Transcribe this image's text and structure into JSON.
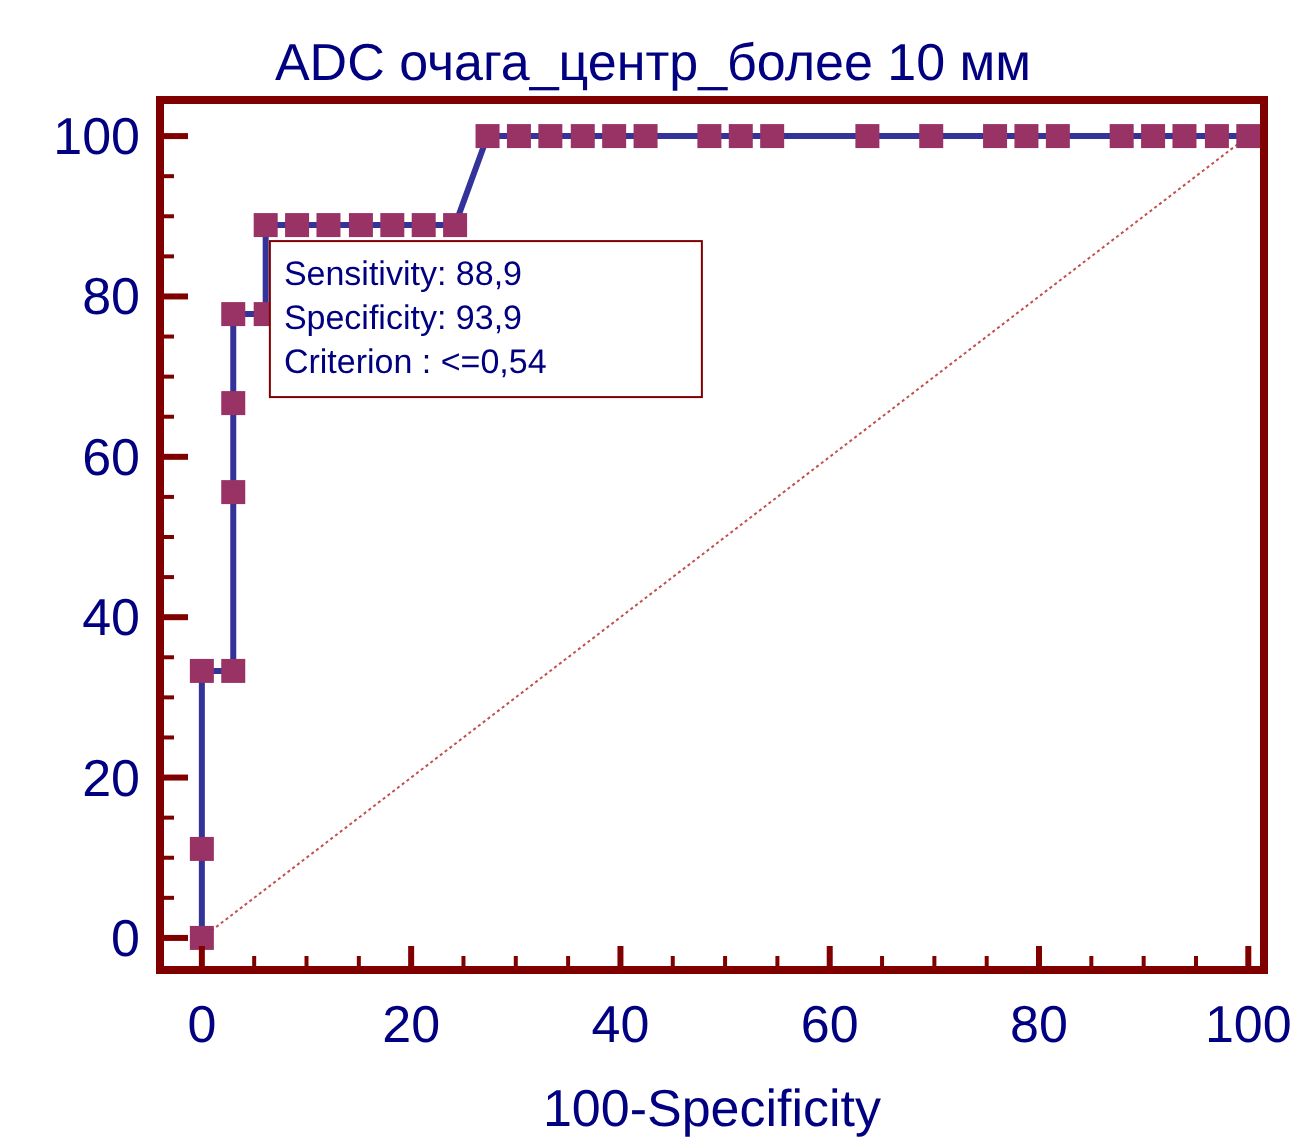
{
  "chart_data": {
    "type": "line",
    "title": "ADC очага_центр_более 10 мм",
    "xlabel": "100-Specificity",
    "xlim": [
      -4,
      101.5
    ],
    "ylim": [
      -4,
      104.5
    ],
    "xticks": [
      0,
      20,
      40,
      60,
      80,
      100
    ],
    "yticks": [
      0,
      20,
      40,
      60,
      80,
      100
    ],
    "grid": false,
    "marker": "square",
    "line_style": "solid",
    "series": [
      {
        "color": "#333399",
        "x": [
          0,
          0,
          0,
          3.0,
          3.0,
          3.0,
          3.0,
          6.1,
          6.1,
          9.1,
          12.1,
          15.2,
          18.2,
          21.2,
          24.2,
          27.3,
          30.3,
          33.3,
          36.4,
          39.4,
          42.4,
          48.5,
          51.5,
          54.5,
          63.6,
          69.7,
          75.8,
          78.8,
          81.8,
          87.9,
          90.9,
          93.9,
          97.0,
          100
        ],
        "values": [
          0,
          11.1,
          33.3,
          33.3,
          55.6,
          66.7,
          77.8,
          77.8,
          88.9,
          88.9,
          88.9,
          88.9,
          88.9,
          88.9,
          88.9,
          100,
          100,
          100,
          100,
          100,
          100,
          100,
          100,
          100,
          100,
          100,
          100,
          100,
          100,
          100,
          100,
          100,
          100,
          100
        ]
      },
      {
        "type": "line",
        "color": "#c0504d",
        "x": [
          0,
          100
        ],
        "values": [
          0,
          100
        ],
        "marker": "none",
        "line_style": "dotted"
      }
    ],
    "annotations": [
      "Sensitivity: 88,9",
      "Specificity: 93,9",
      "Criterion : <=0,54"
    ]
  }
}
